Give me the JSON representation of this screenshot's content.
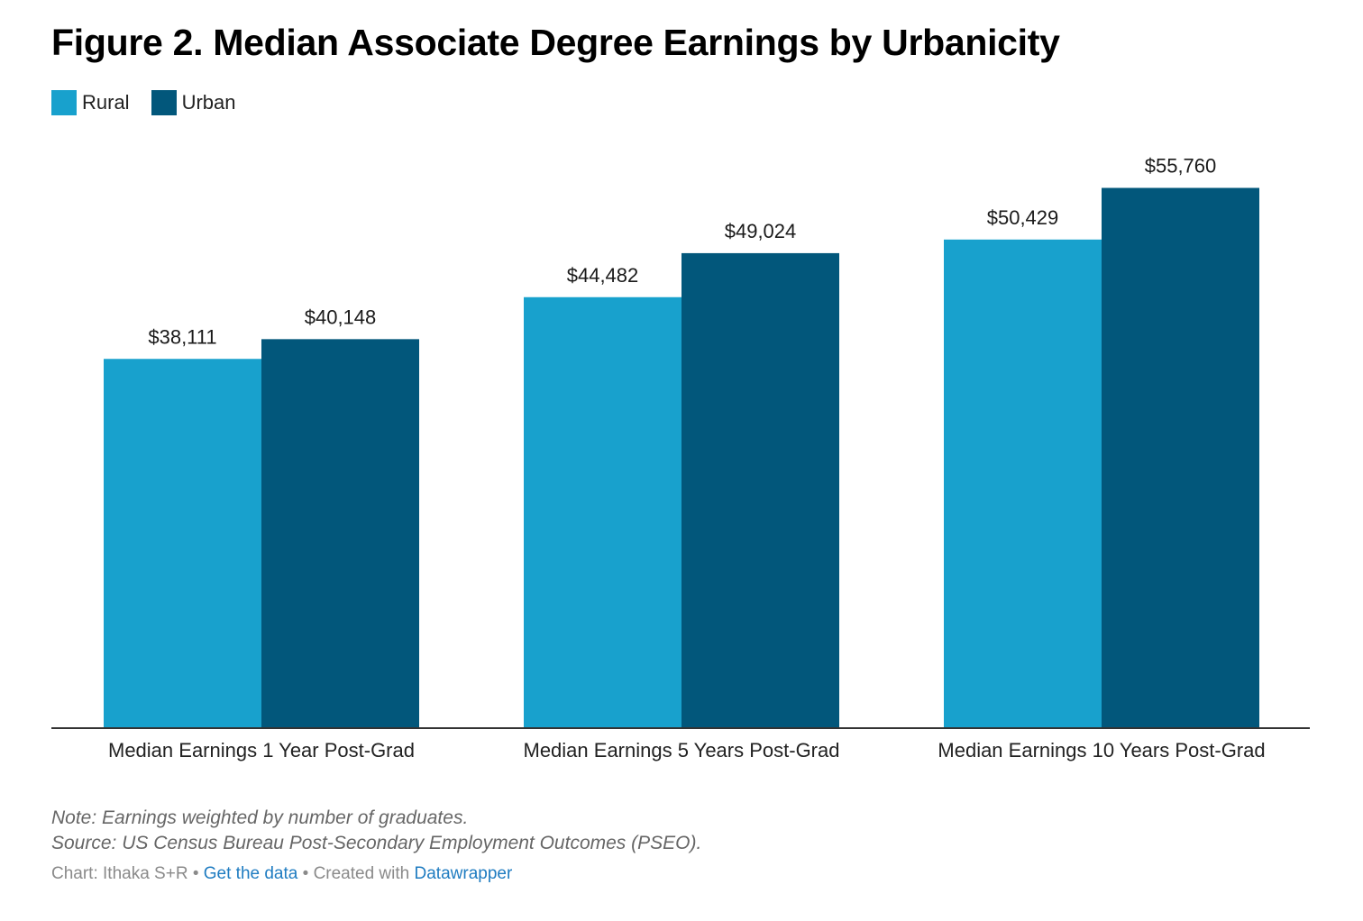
{
  "chart_data": {
    "type": "bar",
    "title": "Figure 2. Median Associate Degree Earnings by Urbanicity",
    "categories": [
      "Median Earnings 1 Year Post-Grad",
      "Median Earnings 5 Years Post-Grad",
      "Median Earnings 10 Years Post-Grad"
    ],
    "series": [
      {
        "name": "Rural",
        "color": "#18a1cd",
        "values": [
          38111,
          44482,
          50429
        ],
        "labels": [
          "$38,111",
          "$44,482",
          "$50,429"
        ]
      },
      {
        "name": "Urban",
        "color": "#02577b",
        "values": [
          40148,
          49024,
          55760
        ],
        "labels": [
          "$40,148",
          "$49,024",
          "$55,760"
        ]
      }
    ],
    "ylim": [
      0,
      60000
    ],
    "grid": false,
    "legend_position": "top-left"
  },
  "footer": {
    "note": "Note: Earnings weighted by number of graduates.",
    "source": "Source: US Census Bureau Post-Secondary Employment Outcomes (PSEO).",
    "credit_prefix": "Chart: Ithaka S+R",
    "separator": "•",
    "get_data_label": "Get the data",
    "created_with_label": "Created with",
    "datawrapper_label": "Datawrapper"
  },
  "colors": {
    "axis_line": "#333333"
  }
}
